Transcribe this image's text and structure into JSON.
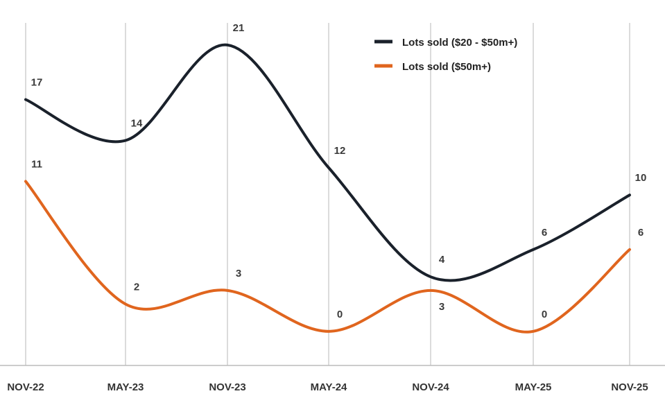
{
  "chart_data": {
    "type": "line",
    "title": "",
    "xlabel": "",
    "ylabel": "",
    "categories": [
      "NOV-22",
      "MAY-23",
      "NOV-23",
      "MAY-24",
      "NOV-24",
      "MAY-25",
      "NOV-25"
    ],
    "ylim": [
      -2.5,
      24.3
    ],
    "grid": "vertical",
    "smooth": true,
    "legend_position": "top-right",
    "series": [
      {
        "name": "Lots sold ($20 - $50m+)",
        "color": "#1a212b",
        "values": [
          17,
          14,
          21,
          12,
          4,
          6,
          10
        ]
      },
      {
        "name": "Lots sold ($50m+)",
        "color": "#e0651e",
        "values": [
          11,
          2,
          3,
          0,
          3,
          0,
          6
        ]
      }
    ]
  }
}
